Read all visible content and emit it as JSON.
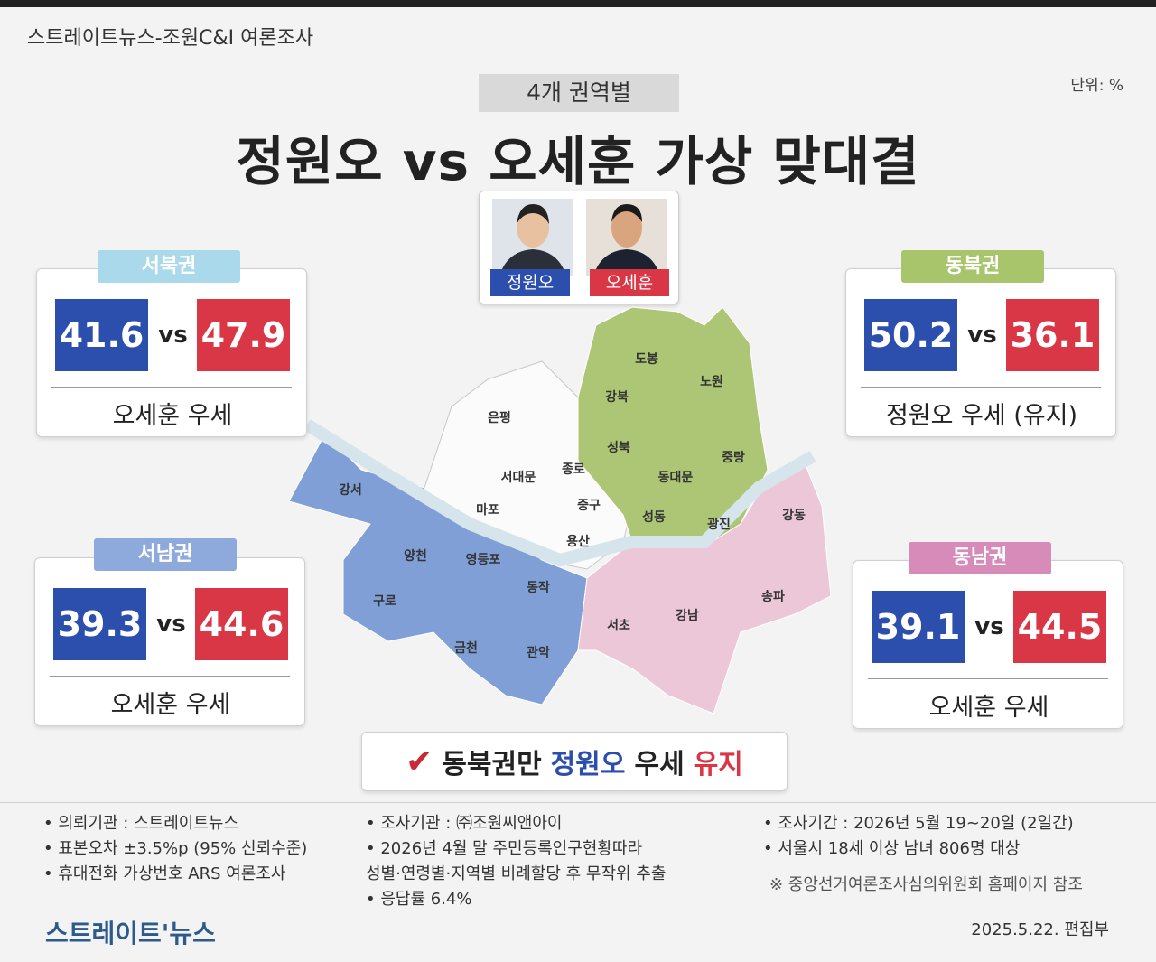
{
  "header": {
    "source": "스트레이트뉴스-조원C&I 여론조사",
    "unit": "단위: %",
    "tag": "4개 권역별",
    "title": "정원오 vs 오세훈 가상 맞대결"
  },
  "candidates": [
    {
      "name": "정원오",
      "color": "#2c4fae"
    },
    {
      "name": "오세훈",
      "color": "#d93646"
    }
  ],
  "vs": "vs",
  "regions": [
    {
      "name": "서북권",
      "color": "#a9d9ea",
      "a": 41.6,
      "b": 47.9,
      "result": "오세훈 우세"
    },
    {
      "name": "동북권",
      "color": "#a9c56c",
      "a": 50.2,
      "b": 36.1,
      "result": "정원오 우세 (유지)"
    },
    {
      "name": "서남권",
      "color": "#8eaadc",
      "a": 39.3,
      "b": 44.6,
      "result": "오세훈 우세"
    },
    {
      "name": "동남권",
      "color": "#d68bb8",
      "a": 39.1,
      "b": 44.5,
      "result": "오세훈 우세"
    }
  ],
  "map": {
    "northwest": [
      "은평",
      "서대문",
      "종로",
      "마포",
      "중구",
      "용산"
    ],
    "northeast": [
      "도봉",
      "노원",
      "강북",
      "성북",
      "중랑",
      "동대문",
      "성동",
      "광진"
    ],
    "southwest": [
      "강서",
      "양천",
      "구로",
      "영등포",
      "동작",
      "금천",
      "관악"
    ],
    "southeast": [
      "서초",
      "강남",
      "송파",
      "강동"
    ]
  },
  "conclusion": [
    {
      "text": "동북권만",
      "color": "#222222"
    },
    {
      "text": "정원오",
      "color": "#2c4fae"
    },
    {
      "text": "우세",
      "color": "#222222"
    },
    {
      "text": "유지",
      "color": "#d93646"
    }
  ],
  "footer": {
    "columns": [
      [
        "• 의뢰기관 : 스트레이트뉴스",
        "• 표본오차 ±3.5%p (95% 신뢰수준)",
        "• 휴대전화 가상번호 ARS 여론조사"
      ],
      [
        "• 조사기관 : ㈜조원씨앤아이",
        "• 2026년 4월 말 주민등록인구현황따라",
        "성별·연령별·지역별 비례할당 후 무작위 추출",
        "• 응답률 6.4%"
      ],
      [
        "• 조사기간 : 2026년 5월 19~20일 (2일간)",
        "• 서울시 18세 이상 남녀 806명 대상"
      ]
    ],
    "note": "※ 중앙선거여론조사심의위원회 홈페이지 참조",
    "logo": "스트레이트'뉴스",
    "date": "2025.5.22. 편집부"
  }
}
